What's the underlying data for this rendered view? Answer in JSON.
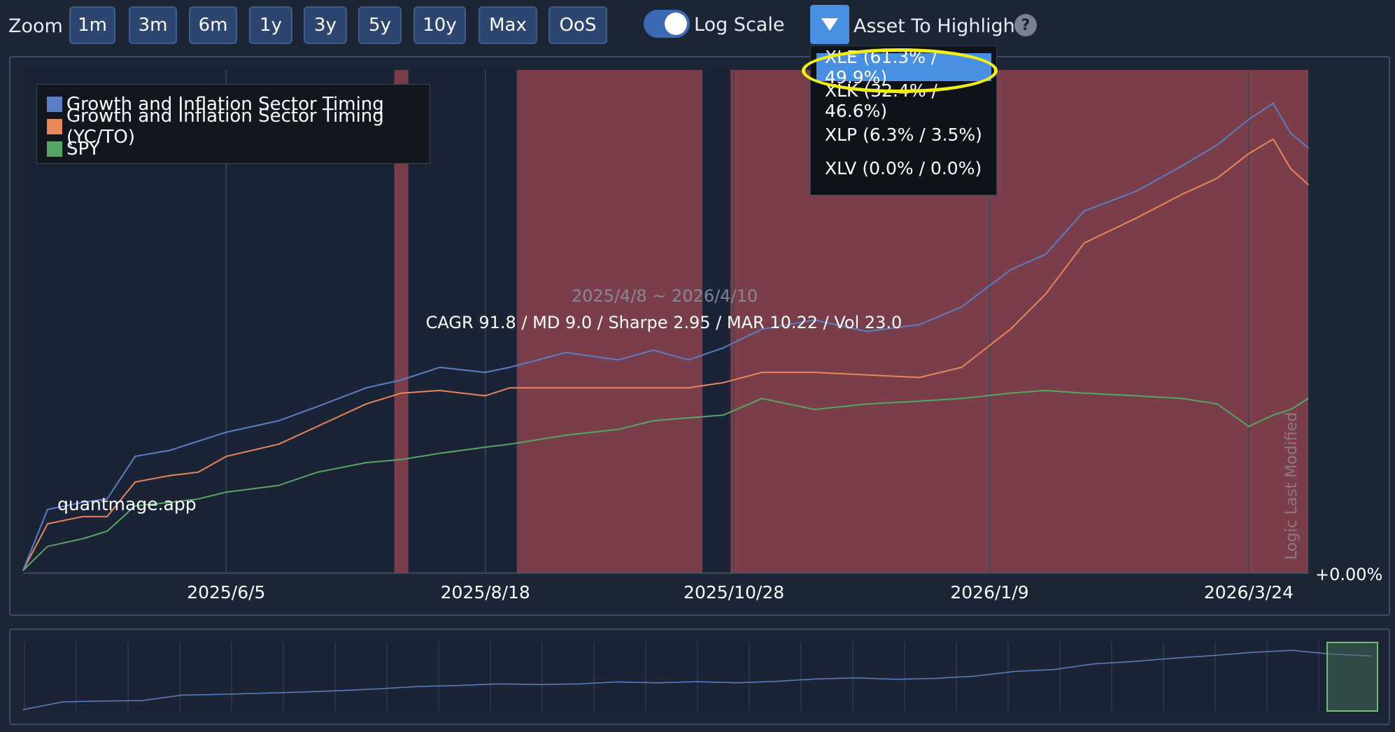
{
  "toolbar": {
    "zoom_label": "Zoom",
    "zoom_buttons": [
      "1m",
      "3m",
      "6m",
      "1y",
      "3y",
      "5y",
      "10y",
      "Max",
      "OoS"
    ],
    "log_scale_label": "Log Scale",
    "log_scale_on": true,
    "asset_highlight_label": "Asset To Highlight",
    "help_glyph": "?"
  },
  "dropdown": {
    "items": [
      "XLE (61.3% / 49.9%)",
      "XLK (32.4% / 46.6%)",
      "XLP (6.3% / 3.5%)",
      "XLV (0.0% / 0.0%)"
    ],
    "selected_index": 0
  },
  "chart": {
    "date_range": "2025/4/8 ~ 2026/4/10",
    "stats": "CAGR 91.8 / MD 9.0 / Sharpe 2.95 / MAR 10.22 / Vol 23.0",
    "watermark": "quantmage.app",
    "logic_label": "Logic Last Modified",
    "y_label": "+0.00%",
    "x_ticks": [
      "2025/6/5",
      "2025/8/18",
      "2025/10/28",
      "2026/1/9",
      "2026/3/24"
    ]
  },
  "colors": {
    "series_1": "#5b7fc4",
    "series_2": "#e8885a",
    "series_3": "#56a664",
    "shade": "#7a3d4a",
    "accent": "#4a90e2",
    "highlight": "#f2ee1a"
  },
  "chart_data": {
    "type": "line",
    "title": "",
    "x_range": [
      "2025/4/8",
      "2026/4/10"
    ],
    "y_log_scale": true,
    "grid": true,
    "legend_position": "top-left",
    "series": [
      {
        "name": "Growth and Inflation Sector Timing",
        "points": [
          [
            "2025/4/8",
            0
          ],
          [
            "2025/4/15",
            16
          ],
          [
            "2025/4/25",
            18
          ],
          [
            "2025/5/2",
            19
          ],
          [
            "2025/5/10",
            32
          ],
          [
            "2025/5/20",
            34
          ],
          [
            "2025/5/28",
            37
          ],
          [
            "2025/6/5",
            40
          ],
          [
            "2025/6/20",
            44
          ],
          [
            "2025/7/1",
            49
          ],
          [
            "2025/7/15",
            56
          ],
          [
            "2025/7/25",
            59
          ],
          [
            "2025/8/5",
            64
          ],
          [
            "2025/8/18",
            62
          ],
          [
            "2025/8/25",
            64
          ],
          [
            "2025/9/10",
            70
          ],
          [
            "2025/9/25",
            67
          ],
          [
            "2025/10/5",
            71
          ],
          [
            "2025/10/15",
            67
          ],
          [
            "2025/10/25",
            72
          ],
          [
            "2025/11/5",
            80
          ],
          [
            "2025/11/20",
            84
          ],
          [
            "2025/12/5",
            79
          ],
          [
            "2025/12/20",
            82
          ],
          [
            "2026/1/1",
            90
          ],
          [
            "2026/1/15",
            108
          ],
          [
            "2026/1/25",
            116
          ],
          [
            "2026/2/5",
            140
          ],
          [
            "2026/2/20",
            152
          ],
          [
            "2026/3/5",
            168
          ],
          [
            "2026/3/15",
            182
          ],
          [
            "2026/3/24",
            200
          ],
          [
            "2026/3/31",
            212
          ],
          [
            "2026/4/5",
            190
          ],
          [
            "2026/4/10",
            180
          ]
        ]
      },
      {
        "name": "Growth and Inflation Sector Timing (YC/TO)",
        "points": [
          [
            "2025/4/8",
            0
          ],
          [
            "2025/4/15",
            12
          ],
          [
            "2025/4/25",
            14
          ],
          [
            "2025/5/2",
            14
          ],
          [
            "2025/5/10",
            24
          ],
          [
            "2025/5/20",
            26
          ],
          [
            "2025/5/28",
            27
          ],
          [
            "2025/6/5",
            32
          ],
          [
            "2025/6/20",
            36
          ],
          [
            "2025/7/1",
            42
          ],
          [
            "2025/7/15",
            50
          ],
          [
            "2025/7/25",
            54
          ],
          [
            "2025/8/5",
            55
          ],
          [
            "2025/8/18",
            53
          ],
          [
            "2025/8/25",
            56
          ],
          [
            "2025/9/10",
            56
          ],
          [
            "2025/9/25",
            56
          ],
          [
            "2025/10/5",
            56
          ],
          [
            "2025/10/15",
            56
          ],
          [
            "2025/10/25",
            58
          ],
          [
            "2025/11/5",
            62
          ],
          [
            "2025/11/20",
            62
          ],
          [
            "2025/12/5",
            61
          ],
          [
            "2025/12/20",
            60
          ],
          [
            "2026/1/1",
            64
          ],
          [
            "2026/1/15",
            80
          ],
          [
            "2026/1/25",
            96
          ],
          [
            "2026/2/5",
            122
          ],
          [
            "2026/2/20",
            136
          ],
          [
            "2026/3/5",
            150
          ],
          [
            "2026/3/15",
            160
          ],
          [
            "2026/3/24",
            176
          ],
          [
            "2026/3/31",
            186
          ],
          [
            "2026/4/5",
            166
          ],
          [
            "2026/4/10",
            156
          ]
        ]
      },
      {
        "name": "SPY",
        "points": [
          [
            "2025/4/8",
            0
          ],
          [
            "2025/4/15",
            6
          ],
          [
            "2025/4/25",
            8
          ],
          [
            "2025/5/2",
            10
          ],
          [
            "2025/5/10",
            17
          ],
          [
            "2025/5/20",
            18
          ],
          [
            "2025/5/28",
            19
          ],
          [
            "2025/6/5",
            21
          ],
          [
            "2025/6/20",
            23
          ],
          [
            "2025/7/1",
            27
          ],
          [
            "2025/7/15",
            30
          ],
          [
            "2025/7/25",
            31
          ],
          [
            "2025/8/5",
            33
          ],
          [
            "2025/8/18",
            35
          ],
          [
            "2025/8/25",
            36
          ],
          [
            "2025/9/10",
            39
          ],
          [
            "2025/9/25",
            41
          ],
          [
            "2025/10/5",
            44
          ],
          [
            "2025/10/15",
            45
          ],
          [
            "2025/10/25",
            46
          ],
          [
            "2025/11/5",
            52
          ],
          [
            "2025/11/20",
            48
          ],
          [
            "2025/12/5",
            50
          ],
          [
            "2025/12/20",
            51
          ],
          [
            "2026/1/1",
            52
          ],
          [
            "2026/1/15",
            54
          ],
          [
            "2026/1/25",
            55
          ],
          [
            "2026/2/5",
            54
          ],
          [
            "2026/2/20",
            53
          ],
          [
            "2026/3/5",
            52
          ],
          [
            "2026/3/15",
            50
          ],
          [
            "2026/3/24",
            42
          ],
          [
            "2026/3/31",
            46
          ],
          [
            "2026/4/5",
            48
          ],
          [
            "2026/4/10",
            52
          ]
        ]
      }
    ],
    "highlight_bands": [
      [
        "2025/7/23",
        "2025/7/27"
      ],
      [
        "2025/8/27",
        "2025/10/19"
      ],
      [
        "2025/10/27",
        "2026/4/10"
      ]
    ]
  }
}
